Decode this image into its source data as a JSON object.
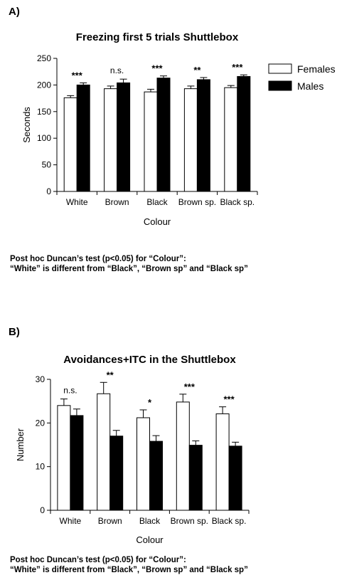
{
  "panel_a": {
    "label": "A)",
    "note_line1": "Post hoc Duncan’s test (p<0.05) for “Colour”:",
    "note_line2": "“White” is different from “Black”, “Brown sp” and “Black sp”"
  },
  "panel_b": {
    "label": "B)",
    "note_line1": "Post hoc Duncan’s test (p<0.05) for “Colour”:",
    "note_line2": "“White” is different from “Black”, “Brown sp” and “Black sp”"
  },
  "chart_data": [
    {
      "type": "bar",
      "title": "Freezing first 5 trials Shuttlebox",
      "xlabel": "Colour",
      "ylabel": "Seconds",
      "ylim": [
        0,
        250
      ],
      "yticks": [
        0,
        50,
        100,
        150,
        200,
        250
      ],
      "categories": [
        "White",
        "Brown",
        "Black",
        "Brown sp.",
        "Black sp."
      ],
      "series": [
        {
          "name": "Females",
          "fill": "#ffffff",
          "values": [
            176,
            193,
            187,
            193,
            195
          ],
          "errors": [
            4,
            5,
            5,
            5,
            4
          ]
        },
        {
          "name": "Males",
          "fill": "#000000",
          "values": [
            200,
            204,
            213,
            210,
            216
          ],
          "errors": [
            4,
            7,
            4,
            4,
            3
          ]
        }
      ],
      "significance": [
        "***",
        "n.s.",
        "***",
        "**",
        "***"
      ],
      "legend_position": "top-right"
    },
    {
      "type": "bar",
      "title": "Avoidances+ITC in the Shuttlebox",
      "xlabel": "Colour",
      "ylabel": "Number",
      "ylim": [
        0,
        30
      ],
      "yticks": [
        0,
        10,
        20,
        30
      ],
      "categories": [
        "White",
        "Brown",
        "Black",
        "Brown sp.",
        "Black sp."
      ],
      "series": [
        {
          "name": "Females",
          "fill": "#ffffff",
          "values": [
            24.0,
            26.7,
            21.2,
            24.8,
            22.1
          ],
          "errors": [
            1.5,
            2.6,
            1.8,
            1.8,
            1.6
          ]
        },
        {
          "name": "Males",
          "fill": "#000000",
          "values": [
            21.7,
            17.0,
            15.8,
            14.9,
            14.7
          ],
          "errors": [
            1.5,
            1.3,
            1.3,
            1.0,
            0.9
          ]
        }
      ],
      "significance": [
        "n.s.",
        "**",
        "*",
        "***",
        "***"
      ]
    }
  ]
}
